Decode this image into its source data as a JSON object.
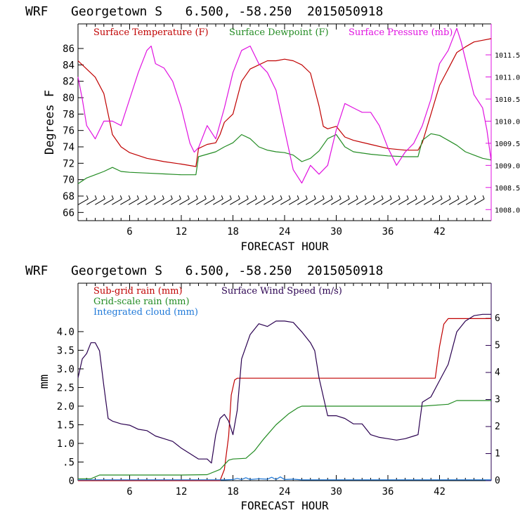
{
  "chart_data": [
    {
      "type": "line",
      "title": "WRF   Georgetown S   6.500, -58.250  2015050918",
      "xlabel": "FORECAST HOUR",
      "ylabel": "Degrees F",
      "xlim": [
        0,
        48
      ],
      "ylim": [
        65,
        89
      ],
      "y2lim": [
        1007.75,
        1012.2
      ],
      "xticks": [
        "6",
        "12",
        "18",
        "24",
        "30",
        "36",
        "42"
      ],
      "yticks": [
        "66",
        "68",
        "70",
        "72",
        "74",
        "76",
        "78",
        "80",
        "82",
        "84",
        "86"
      ],
      "y2ticks": [
        "1008.0",
        "1008.5",
        "1009.0",
        "1009.5",
        "1010.0",
        "1010.5",
        "1011.0",
        "1011.5"
      ],
      "legend": [
        "Surface Temperature (F)",
        "Surface Dewpoint (F)",
        "Surface Pressure (mb)"
      ],
      "legend_placement": "top-left",
      "colors": {
        "temperature": "#c00000",
        "dewpoint": "#228b22",
        "pressure": "#e010e0",
        "wind_barbs": "#000000"
      },
      "series": [
        {
          "name": "Surface Temperature (F)",
          "axis": "left",
          "x": [
            0,
            1,
            2,
            3,
            3.5,
            4,
            5,
            6,
            8,
            10,
            12,
            13.7,
            14,
            15,
            16,
            16.5,
            17,
            18,
            19,
            20,
            21,
            22,
            23,
            24,
            25,
            26,
            27,
            28,
            28.5,
            29,
            30,
            31,
            32,
            34,
            36,
            38,
            39.5,
            40,
            41,
            42,
            43,
            44,
            45,
            46,
            47,
            48
          ],
          "values": [
            84.5,
            83.5,
            82.5,
            80.5,
            78,
            75.5,
            74,
            73.3,
            72.6,
            72.2,
            71.9,
            71.6,
            73.8,
            74.3,
            74.5,
            75.5,
            77,
            78,
            82,
            83.5,
            84,
            84.5,
            84.5,
            84.7,
            84.5,
            84,
            83,
            79,
            76.5,
            76.2,
            76.5,
            75.2,
            74.8,
            74.3,
            73.8,
            73.6,
            73.6,
            74.5,
            78,
            81.5,
            83.5,
            85.5,
            86.2,
            86.8,
            87,
            87.2
          ]
        },
        {
          "name": "Surface Dewpoint (F)",
          "axis": "left",
          "x": [
            0,
            1,
            2,
            3,
            4,
            5,
            6,
            8,
            10,
            12,
            13.7,
            14,
            16,
            17,
            18,
            19,
            20,
            21,
            22,
            23,
            24,
            25,
            26,
            27,
            28,
            29,
            30,
            31,
            32,
            34,
            36,
            38,
            39.5,
            40,
            41,
            42,
            43,
            44,
            45,
            46,
            47,
            48
          ],
          "values": [
            69.5,
            70.2,
            70.6,
            71,
            71.5,
            71,
            70.9,
            70.8,
            70.7,
            70.6,
            70.6,
            72.8,
            73.4,
            74,
            74.5,
            75.5,
            75,
            74,
            73.6,
            73.4,
            73.3,
            73,
            72.2,
            72.6,
            73.5,
            75,
            75.5,
            74,
            73.4,
            73.1,
            72.9,
            72.8,
            72.8,
            74.8,
            75.6,
            75.4,
            74.8,
            74.2,
            73.4,
            73,
            72.6,
            72.4
          ]
        },
        {
          "name": "Surface Pressure (mb)",
          "axis": "right",
          "x": [
            0,
            0.5,
            1,
            2,
            3,
            4,
            5,
            6,
            7,
            8,
            8.5,
            9,
            10,
            11,
            12,
            13,
            13.5,
            14,
            15,
            16,
            17,
            18,
            19,
            20,
            20.5,
            21,
            22,
            23,
            24,
            25,
            26,
            27,
            28,
            29,
            30,
            31,
            32,
            33,
            34,
            35,
            36,
            37,
            38,
            39,
            40,
            41,
            42,
            43,
            44,
            44.5,
            45,
            46,
            47,
            47.5,
            48
          ],
          "values": [
            1011,
            1010.5,
            1009.9,
            1009.6,
            1010,
            1010,
            1009.9,
            1010.5,
            1011.1,
            1011.6,
            1011.7,
            1011.3,
            1011.2,
            1010.9,
            1010.3,
            1009.5,
            1009.3,
            1009.4,
            1009.9,
            1009.6,
            1010.3,
            1011.1,
            1011.6,
            1011.7,
            1011.5,
            1011.3,
            1011.1,
            1010.7,
            1009.8,
            1008.9,
            1008.6,
            1009,
            1008.8,
            1009,
            1009.8,
            1010.4,
            1010.3,
            1010.2,
            1010.2,
            1009.9,
            1009.4,
            1009,
            1009.3,
            1009.5,
            1009.9,
            1010.5,
            1011.3,
            1011.6,
            1012.1,
            1011.8,
            1011.4,
            1010.6,
            1010.3,
            1009.8,
            1009.1
          ]
        }
      ],
      "wind_barbs": {
        "y": 67.3,
        "count": 48
      }
    },
    {
      "type": "line",
      "title": "WRF   Georgetown S   6.500, -58.250  2015050918",
      "xlabel": "FORECAST HOUR",
      "ylabel": "mm",
      "xlim": [
        0,
        48
      ],
      "ylim": [
        0,
        5.3
      ],
      "y2lim": [
        0,
        7.3
      ],
      "xticks": [
        "6",
        "12",
        "18",
        "24",
        "30",
        "36",
        "42"
      ],
      "yticks": [
        "0",
        ".5",
        "1.0",
        "1.5",
        "2.0",
        "2.5",
        "3.0",
        "3.5",
        "4.0"
      ],
      "y2ticks": [
        "0",
        "1",
        "2",
        "3",
        "4",
        "5",
        "6"
      ],
      "legend": [
        "Sub-grid rain (mm)",
        "Surface Wind Speed (m/s)",
        "Grid-scale rain (mm)",
        "Integrated cloud (mm)"
      ],
      "legend_placement": "top-left",
      "colors": {
        "subgrid": "#c00000",
        "wind": "#2a0050",
        "grid": "#228b22",
        "cloud": "#1e78d8"
      },
      "series": [
        {
          "name": "Sub-grid rain (mm)",
          "axis": "left",
          "x": [
            0,
            14.5,
            16.5,
            17,
            17.5,
            17.8,
            18.2,
            18.5,
            20,
            30,
            40,
            41.5,
            42,
            42.5,
            43,
            48
          ],
          "values": [
            0,
            0,
            0,
            0.3,
            1.2,
            2.3,
            2.7,
            2.75,
            2.75,
            2.75,
            2.75,
            2.75,
            3.6,
            4.2,
            4.35,
            4.35
          ]
        },
        {
          "name": "Grid-scale rain (mm)",
          "axis": "left",
          "x": [
            0,
            1.5,
            2.5,
            4,
            8,
            12,
            15,
            16.5,
            17.5,
            18,
            19.5,
            20.5,
            21.5,
            23,
            24.5,
            25.5,
            26,
            30,
            36,
            40,
            43,
            44,
            48
          ],
          "values": [
            0.05,
            0.05,
            0.15,
            0.15,
            0.15,
            0.15,
            0.16,
            0.3,
            0.55,
            0.58,
            0.6,
            0.8,
            1.1,
            1.5,
            1.8,
            1.95,
            2,
            2,
            2,
            2,
            2.05,
            2.15,
            2.15
          ]
        },
        {
          "name": "Integrated cloud (mm)",
          "axis": "left",
          "x": [
            0,
            17,
            18,
            18.5,
            19,
            19.5,
            20,
            21,
            22,
            22.5,
            23,
            23.5,
            24,
            25,
            26,
            30,
            48
          ],
          "values": [
            0.02,
            0.02,
            0.03,
            0.06,
            0.03,
            0.08,
            0.03,
            0.05,
            0.04,
            0.09,
            0.03,
            0.1,
            0.03,
            0.04,
            0.02,
            0.02,
            0.02
          ]
        },
        {
          "name": "Surface Wind Speed (m/s)",
          "axis": "right",
          "x": [
            0,
            0.5,
            1,
            1.5,
            2,
            2.5,
            3,
            3.5,
            4,
            5,
            6,
            7,
            8,
            9,
            10,
            11,
            12,
            13,
            14,
            15,
            15.5,
            16,
            16.5,
            17,
            17.5,
            18,
            18.5,
            19,
            20,
            21,
            22,
            23,
            24,
            25,
            26,
            27,
            27.5,
            28,
            29,
            30,
            31,
            32,
            33,
            34,
            35,
            36,
            37,
            38,
            39,
            39.5,
            40,
            41,
            42,
            43,
            44,
            45,
            46,
            47,
            48
          ],
          "values": [
            3.8,
            4.5,
            4.7,
            5.1,
            5.1,
            4.8,
            3.5,
            2.3,
            2.2,
            2.1,
            2.05,
            1.9,
            1.85,
            1.65,
            1.55,
            1.45,
            1.2,
            1,
            0.8,
            0.8,
            0.65,
            1.7,
            2.3,
            2.45,
            2.2,
            1.7,
            2.6,
            4.5,
            5.4,
            5.8,
            5.7,
            5.9,
            5.9,
            5.85,
            5.5,
            5.1,
            4.8,
            3.8,
            2.4,
            2.4,
            2.3,
            2.1,
            2.1,
            1.7,
            1.6,
            1.55,
            1.5,
            1.55,
            1.65,
            1.7,
            2.9,
            3.1,
            3.7,
            4.3,
            5.5,
            5.9,
            6.1,
            6.15,
            6.15
          ]
        }
      ]
    }
  ]
}
